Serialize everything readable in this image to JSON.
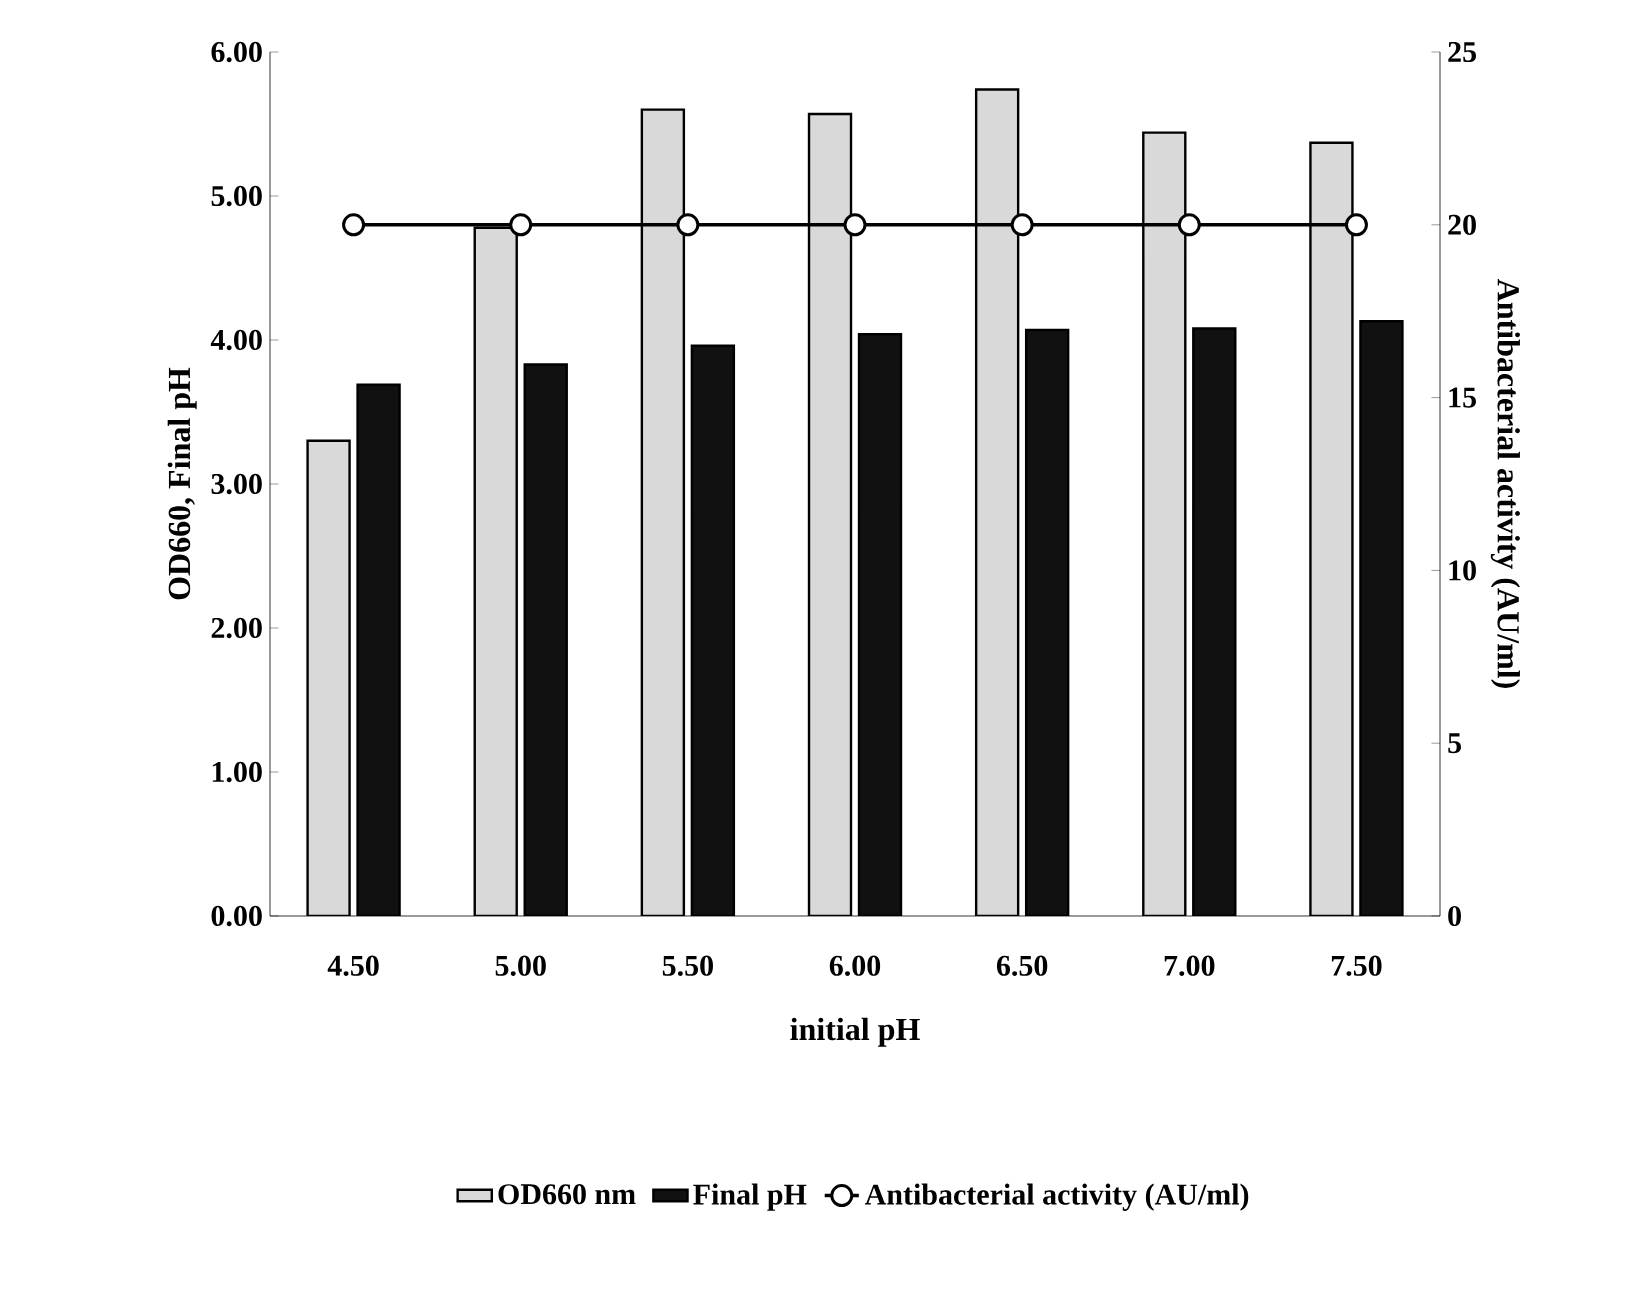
{
  "chart_data": {
    "type": "bar",
    "xlabel": "initial pH",
    "ylabel": "OD660, Final pH",
    "y2label": "Antibacterial activity (AU/ml)",
    "categories": [
      "4.50",
      "5.00",
      "5.50",
      "6.00",
      "6.50",
      "7.00",
      "7.50"
    ],
    "series": [
      {
        "name": "OD660 nm",
        "color": "#d9d9d9",
        "values": [
          3.3,
          4.78,
          5.6,
          5.57,
          5.74,
          5.44,
          5.37
        ]
      },
      {
        "name": "Final pH",
        "color": "#111111",
        "values": [
          3.69,
          3.83,
          3.96,
          4.04,
          4.07,
          4.08,
          4.13
        ]
      },
      {
        "name": "Antibacterial activity (AU/ml)",
        "type": "line",
        "axis": "y2",
        "color": "#000000",
        "marker": "circle",
        "values": [
          20,
          20,
          20,
          20,
          20,
          20,
          20
        ]
      }
    ],
    "ylim": [
      0,
      6
    ],
    "yticks": [
      {
        "value": 0,
        "label": "0.00"
      },
      {
        "value": 1,
        "label": "1.00"
      },
      {
        "value": 2,
        "label": "2.00"
      },
      {
        "value": 3,
        "label": "3.00"
      },
      {
        "value": 4,
        "label": "4.00"
      },
      {
        "value": 5,
        "label": "5.00"
      },
      {
        "value": 6,
        "label": "6.00"
      }
    ],
    "y2lim": [
      0,
      25
    ],
    "y2ticks": [
      0,
      5,
      10,
      15,
      20,
      25
    ],
    "grid": false,
    "legend": "bottom"
  }
}
